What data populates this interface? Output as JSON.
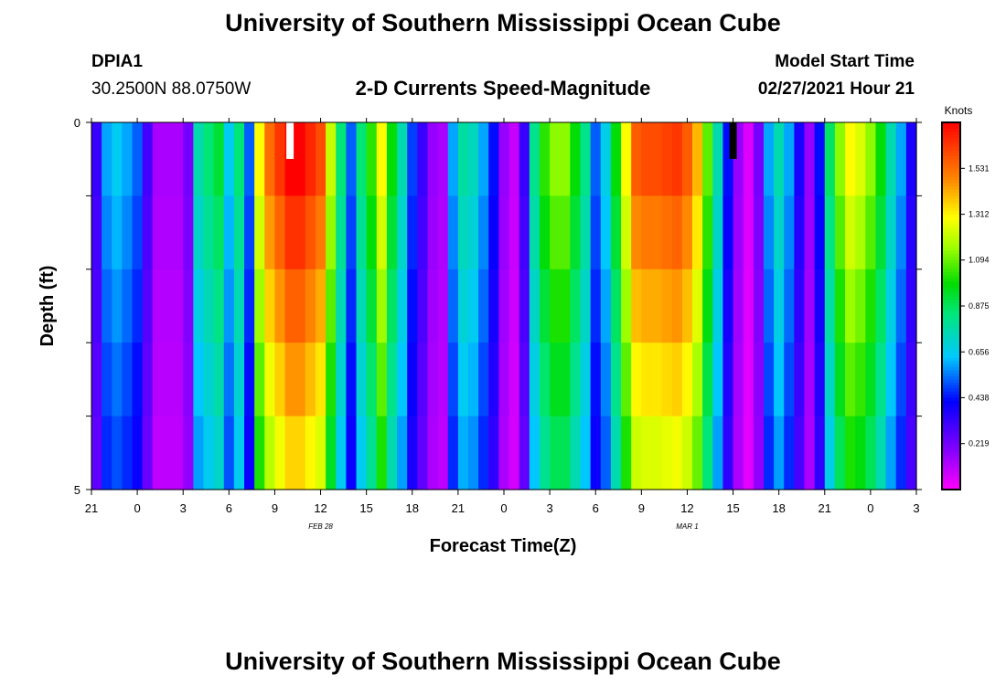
{
  "page": {
    "title_top": "University of Southern Mississippi Ocean Cube",
    "title_bottom": "University of Southern Mississippi Ocean Cube",
    "station_id": "DPIA1",
    "station_coords": "30.2500N 88.0750W",
    "model_start_label": "Model Start Time",
    "model_start_value": "02/27/2021 Hour 21"
  },
  "chart_data": {
    "type": "heatmap",
    "title": "2-D Currents Speed-Magnitude",
    "xlabel": "Forecast Time(Z)",
    "ylabel": "Depth (ft)",
    "x_start_hour": 21,
    "x_hours": 54,
    "x_tick_labels": [
      "21",
      "0",
      "3",
      "6",
      "9",
      "12",
      "15",
      "18",
      "21",
      "0",
      "3",
      "6",
      "9",
      "12",
      "15",
      "18",
      "21",
      "0",
      "3"
    ],
    "date_labels": [
      {
        "text": "FEB 28",
        "hour_offset": 15
      },
      {
        "text": "MAR 1",
        "hour_offset": 39
      }
    ],
    "y_tick_labels": [
      "0",
      "5"
    ],
    "ylim": [
      0,
      5
    ],
    "depth_levels": 5,
    "colorbar": {
      "unit": "Knots",
      "min": 0,
      "max": 1.75,
      "tick_labels": [
        "1.531",
        "1.312",
        "1.094",
        "0.875",
        "0.656",
        "0.438",
        "0.219"
      ],
      "tick_values": [
        1.531,
        1.312,
        1.094,
        0.875,
        0.656,
        0.438,
        0.219
      ]
    },
    "column_base_speed_knots": [
      0.3,
      0.55,
      0.6,
      0.55,
      0.48,
      0.28,
      0.12,
      0.12,
      0.12,
      0.2,
      0.7,
      0.78,
      0.85,
      0.6,
      0.78,
      0.48,
      1.2,
      1.42,
      1.52,
      1.62,
      1.62,
      1.55,
      1.48,
      1.12,
      0.78,
      0.48,
      0.78,
      0.95,
      1.2,
      0.9,
      0.7,
      0.45,
      0.3,
      0.15,
      0.12,
      0.55,
      0.72,
      0.68,
      0.55,
      0.4,
      0.15,
      0.08,
      0.3,
      0.75,
      0.95,
      1.05,
      1.05,
      0.9,
      0.75,
      0.48,
      0.62,
      0.9,
      1.2,
      1.45,
      1.48,
      1.48,
      1.5,
      1.52,
      1.45,
      1.3,
      1.0,
      0.7,
      0.4,
      0.15,
      0.05,
      0.2,
      0.55,
      0.7,
      0.55,
      0.35,
      0.15,
      0.4,
      0.8,
      1.05,
      1.2,
      1.15,
      1.05,
      0.9,
      0.7,
      0.55,
      0.35
    ],
    "depth_factors": [
      1.08,
      1.02,
      0.96,
      0.9,
      0.84
    ],
    "markers": [
      {
        "hour_offset": 13.0,
        "color": "#ffffff"
      },
      {
        "hour_offset": 42.0,
        "color": "#000000"
      }
    ]
  }
}
